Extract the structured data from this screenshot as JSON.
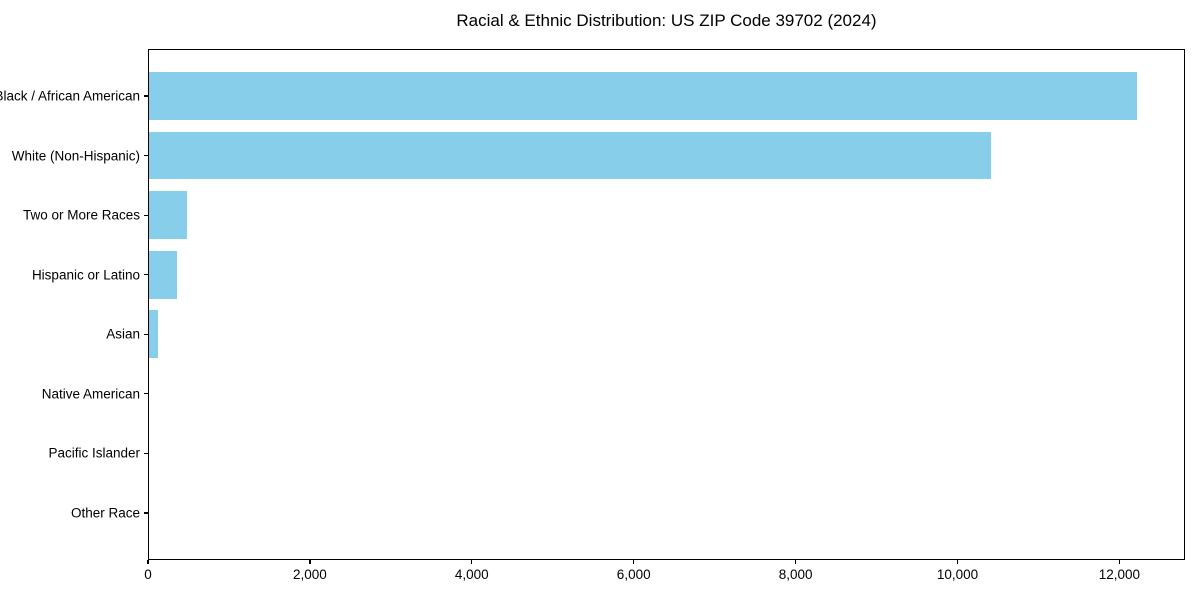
{
  "chart_data": {
    "type": "bar",
    "orientation": "horizontal",
    "title": "Racial & Ethnic Distribution: US ZIP Code 39702 (2024)",
    "categories": [
      "Black / African American",
      "White (Non-Hispanic)",
      "Two or More Races",
      "Hispanic or Latino",
      "Asian",
      "Native American",
      "Pacific Islander",
      "Other Race"
    ],
    "values": [
      12200,
      10400,
      470,
      340,
      110,
      0,
      0,
      0
    ],
    "xlabel": "",
    "ylabel": "",
    "xlim": [
      0,
      12810
    ],
    "x_ticks": [
      0,
      2000,
      4000,
      6000,
      8000,
      10000,
      12000
    ],
    "x_tick_labels": [
      "0",
      "2,000",
      "4,000",
      "6,000",
      "8,000",
      "10,000",
      "12,000"
    ],
    "grid": false,
    "legend": null,
    "bar_color": "#87CEEB"
  },
  "colors": {
    "background": "#ffffff",
    "bar": "#87CEEB",
    "axis": "#000000",
    "text": "#000000"
  }
}
